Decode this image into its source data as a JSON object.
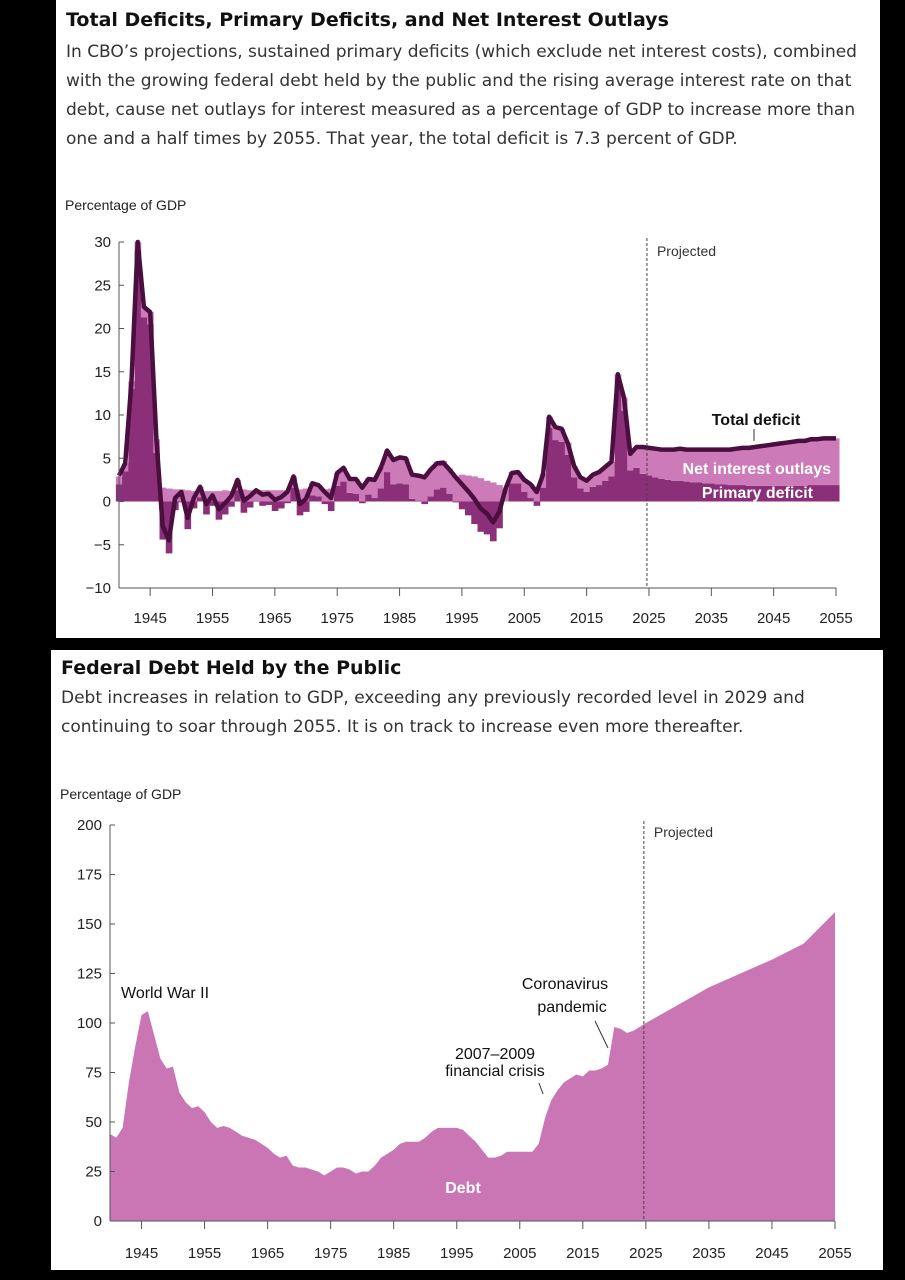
{
  "panels": [
    {
      "title": "Total Deficits, Primary Deficits, and Net Interest Outlays",
      "subtitle": "In CBO’s projections, sustained primary deficits (which exclude net interest costs), combined with the growing federal debt held by the public and the rising average interest rate on that debt, cause net outlays for interest measured as a percentage of GDP to increase more than one and a half times by 2055. That year, the total deficit is 7.3 percent of GDP."
    },
    {
      "title": "Federal Debt Held by the Public",
      "subtitle": "Debt increases in relation to GDP, exceeding any previously recorded level in 2029 and continuing to soar through 2055. It is on track to increase even more thereafter."
    }
  ],
  "chart_data": [
    {
      "type": "area",
      "ylabel": "Percentage of GDP",
      "ylim": [
        -10,
        30
      ],
      "yticks": [
        30,
        25,
        20,
        15,
        10,
        5,
        0,
        -5,
        -10
      ],
      "xlim": [
        1940,
        2055
      ],
      "xticks": [
        "1945",
        "1955",
        "1965",
        "1975",
        "1985",
        "1995",
        "2005",
        "2015",
        "2025",
        "2035",
        "2045",
        "2055"
      ],
      "projected_label": "Projected",
      "projected_start": 2025,
      "annotations": {
        "total": "Total deficit",
        "interest": "Net interest outlays",
        "primary": "Primary deficit"
      },
      "colors": {
        "total_line": "#4a0f3e",
        "interest": "#cc7ab8",
        "primary": "#8a2f78"
      },
      "years": [
        1940,
        1941,
        1942,
        1943,
        1944,
        1945,
        1946,
        1947,
        1948,
        1949,
        1950,
        1951,
        1952,
        1953,
        1954,
        1955,
        1956,
        1957,
        1958,
        1959,
        1960,
        1961,
        1962,
        1963,
        1964,
        1965,
        1966,
        1967,
        1968,
        1969,
        1970,
        1971,
        1972,
        1973,
        1974,
        1975,
        1976,
        1977,
        1978,
        1979,
        1980,
        1981,
        1982,
        1983,
        1984,
        1985,
        1986,
        1987,
        1988,
        1989,
        1990,
        1991,
        1992,
        1993,
        1994,
        1995,
        1996,
        1997,
        1998,
        1999,
        2000,
        2001,
        2002,
        2003,
        2004,
        2005,
        2006,
        2007,
        2008,
        2009,
        2010,
        2011,
        2012,
        2013,
        2014,
        2015,
        2016,
        2017,
        2018,
        2019,
        2020,
        2021,
        2022,
        2023,
        2024,
        2025,
        2026,
        2027,
        2028,
        2029,
        2030,
        2031,
        2032,
        2033,
        2034,
        2035,
        2036,
        2037,
        2038,
        2039,
        2040,
        2041,
        2042,
        2043,
        2044,
        2045,
        2046,
        2047,
        2048,
        2049,
        2050,
        2051,
        2052,
        2053,
        2054,
        2055
      ],
      "series": [
        {
          "name": "Net interest outlays",
          "values": [
            0.9,
            0.9,
            0.9,
            1.0,
            1.2,
            1.4,
            1.6,
            1.6,
            1.5,
            1.4,
            1.4,
            1.3,
            1.2,
            1.2,
            1.2,
            1.2,
            1.2,
            1.3,
            1.2,
            1.2,
            1.4,
            1.3,
            1.2,
            1.3,
            1.3,
            1.3,
            1.3,
            1.3,
            1.3,
            1.4,
            1.5,
            1.4,
            1.3,
            1.4,
            1.5,
            1.5,
            1.6,
            1.6,
            1.7,
            1.8,
            1.9,
            2.2,
            2.5,
            2.5,
            2.8,
            3.0,
            3.0,
            2.9,
            3.0,
            3.1,
            3.2,
            3.2,
            3.1,
            2.9,
            2.9,
            3.1,
            3.0,
            2.9,
            2.7,
            2.4,
            2.2,
            1.9,
            1.5,
            1.3,
            1.3,
            1.4,
            1.6,
            1.7,
            1.6,
            1.3,
            1.5,
            1.5,
            1.4,
            1.3,
            1.3,
            1.3,
            1.4,
            1.5,
            1.6,
            1.7,
            1.6,
            1.5,
            1.9,
            2.4,
            3.1,
            3.2,
            3.3,
            3.4,
            3.5,
            3.6,
            3.7,
            3.7,
            3.8,
            3.8,
            3.9,
            3.9,
            4.0,
            4.0,
            4.1,
            4.2,
            4.3,
            4.4,
            4.5,
            4.6,
            4.7,
            4.8,
            4.9,
            5.0,
            5.1,
            5.2,
            5.2,
            5.3,
            5.3,
            5.4,
            5.4,
            5.4
          ]
        },
        {
          "name": "Primary deficit",
          "values": [
            2.0,
            3.5,
            13.0,
            29.0,
            21.3,
            20.5,
            5.6,
            -4.4,
            -6.0,
            -1.0,
            -0.1,
            -3.2,
            -0.8,
            0.5,
            -1.5,
            -0.5,
            -2.1,
            -1.5,
            -0.6,
            1.3,
            -1.3,
            -0.7,
            0.1,
            -0.5,
            -0.4,
            -1.1,
            -0.8,
            -0.2,
            1.6,
            -1.6,
            -1.2,
            0.7,
            0.6,
            -0.3,
            -1.1,
            1.8,
            2.3,
            1.0,
            0.9,
            -0.2,
            0.8,
            0.4,
            1.5,
            3.4,
            2.0,
            2.1,
            2.0,
            0.3,
            0.1,
            -0.3,
            0.6,
            1.4,
            1.6,
            0.9,
            -0.1,
            -0.9,
            -1.6,
            -2.6,
            -3.5,
            -3.8,
            -4.6,
            -3.1,
            0.0,
            2.1,
            2.1,
            1.1,
            0.4,
            -0.5,
            1.6,
            8.5,
            7.1,
            6.9,
            5.4,
            2.8,
            1.5,
            1.1,
            1.7,
            1.9,
            2.4,
            2.9,
            13.1,
            10.5,
            3.6,
            3.9,
            3.2,
            3.0,
            2.8,
            2.6,
            2.5,
            2.4,
            2.4,
            2.3,
            2.2,
            2.2,
            2.1,
            2.1,
            2.0,
            2.0,
            1.9,
            1.9,
            1.9,
            1.8,
            1.8,
            1.8,
            1.8,
            1.8,
            1.8,
            1.8,
            1.8,
            1.8,
            1.8,
            1.9,
            1.9,
            1.9,
            1.9,
            1.9
          ]
        },
        {
          "name": "Total deficit",
          "values": [
            3.0,
            4.4,
            13.9,
            30.0,
            22.5,
            21.9,
            7.2,
            -2.8,
            -4.5,
            0.4,
            1.1,
            -1.9,
            0.4,
            1.7,
            -0.3,
            0.7,
            -0.9,
            -0.2,
            0.6,
            2.5,
            0.1,
            0.6,
            1.3,
            0.8,
            0.9,
            0.2,
            0.5,
            1.1,
            2.9,
            -0.3,
            0.3,
            2.1,
            1.9,
            1.1,
            0.4,
            3.3,
            3.9,
            2.6,
            2.6,
            1.6,
            2.6,
            2.5,
            3.9,
            5.9,
            4.8,
            5.1,
            5.0,
            3.1,
            3.0,
            2.8,
            3.7,
            4.4,
            4.5,
            3.7,
            2.8,
            2.0,
            1.2,
            0.3,
            -0.8,
            -1.4,
            -2.4,
            -1.2,
            1.5,
            3.3,
            3.4,
            2.5,
            2.0,
            1.1,
            3.1,
            9.8,
            8.6,
            8.4,
            6.7,
            4.1,
            2.8,
            2.4,
            3.1,
            3.4,
            4.0,
            4.6,
            14.7,
            12.0,
            5.5,
            6.3,
            6.3,
            6.2,
            6.1,
            6.0,
            6.0,
            6.0,
            6.1,
            6.0,
            6.0,
            6.0,
            6.0,
            6.0,
            6.0,
            6.0,
            6.0,
            6.1,
            6.2,
            6.2,
            6.3,
            6.4,
            6.5,
            6.6,
            6.7,
            6.8,
            6.9,
            7.0,
            7.0,
            7.2,
            7.2,
            7.3,
            7.3,
            7.3
          ]
        }
      ]
    },
    {
      "type": "area",
      "ylabel": "Percentage of GDP",
      "ylim": [
        0,
        200
      ],
      "yticks": [
        200,
        175,
        150,
        125,
        100,
        75,
        50,
        25,
        0
      ],
      "xlim": [
        1940,
        2055
      ],
      "xticks": [
        "1945",
        "1955",
        "1965",
        "1975",
        "1985",
        "1995",
        "2005",
        "2015",
        "2025",
        "2035",
        "2045",
        "2055"
      ],
      "projected_label": "Projected",
      "projected_start": 2025,
      "color": "#cb76b4",
      "annotations": {
        "ww2": "World War II",
        "crisis_line1": "2007–2009",
        "crisis_line2": "financial crisis",
        "covid_line1": "Coronavirus",
        "covid_line2": "pandemic",
        "series_label": "Debt"
      },
      "series": [
        {
          "name": "Debt",
          "x": [
            1940,
            1941,
            1942,
            1943,
            1944,
            1945,
            1946,
            1947,
            1948,
            1949,
            1950,
            1951,
            1952,
            1953,
            1954,
            1955,
            1956,
            1957,
            1958,
            1959,
            1960,
            1961,
            1962,
            1963,
            1964,
            1965,
            1966,
            1967,
            1968,
            1969,
            1970,
            1971,
            1972,
            1973,
            1974,
            1975,
            1976,
            1977,
            1978,
            1979,
            1980,
            1981,
            1982,
            1983,
            1984,
            1985,
            1986,
            1987,
            1988,
            1989,
            1990,
            1991,
            1992,
            1993,
            1994,
            1995,
            1996,
            1997,
            1998,
            1999,
            2000,
            2001,
            2002,
            2003,
            2004,
            2005,
            2006,
            2007,
            2008,
            2009,
            2010,
            2011,
            2012,
            2013,
            2014,
            2015,
            2016,
            2017,
            2018,
            2019,
            2020,
            2021,
            2022,
            2023,
            2024,
            2025,
            2030,
            2035,
            2040,
            2045,
            2050,
            2055
          ],
          "values": [
            44,
            42,
            47,
            70,
            88,
            104,
            106,
            94,
            82,
            77,
            78,
            65,
            60,
            57,
            58,
            55,
            50,
            47,
            48,
            47,
            45,
            43,
            42,
            41,
            39,
            37,
            34,
            32,
            33,
            28,
            27,
            27,
            26,
            25,
            23,
            25,
            27,
            27,
            26,
            24,
            25,
            25,
            28,
            32,
            34,
            36,
            39,
            40,
            40,
            40,
            42,
            45,
            47,
            47,
            47,
            47,
            46,
            43,
            40,
            36,
            32,
            32,
            33,
            35,
            35,
            35,
            35,
            35,
            39,
            52,
            61,
            66,
            70,
            72,
            74,
            73,
            76,
            76,
            77,
            79,
            98,
            97,
            95,
            96,
            98,
            100,
            109,
            118,
            125,
            132,
            140,
            156
          ]
        }
      ]
    }
  ]
}
